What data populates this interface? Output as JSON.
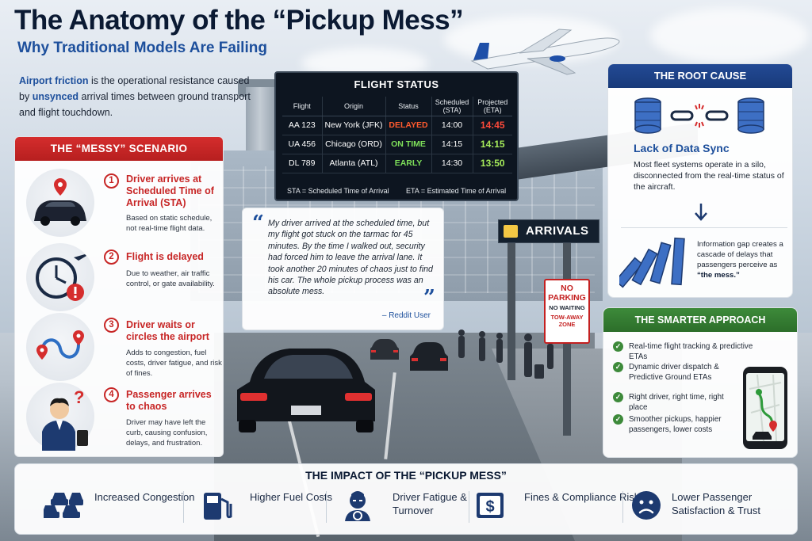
{
  "header": {
    "title": "The Anatomy of the “Pickup Mess”",
    "subtitle": "Why Traditional Models Are Failing",
    "intro_term": "Airport friction",
    "intro_part1": " is the operational resistance caused by ",
    "intro_bold": "unsynced",
    "intro_part2": " arrival times between ground transport and flight touchdown."
  },
  "messy": {
    "heading": "THE “MESSY” SCENARIO",
    "steps": [
      {
        "num": "1",
        "title": "Driver arrives at Scheduled Time of Arrival (STA)",
        "desc": "Based on static schedule, not real-time flight data.",
        "icon": "car-location-icon"
      },
      {
        "num": "2",
        "title": "Flight is delayed",
        "desc": "Due to weather, air traffic control, or gate availability.",
        "icon": "clock-delay-icon"
      },
      {
        "num": "3",
        "title": "Driver waits or circles the airport",
        "desc": "Adds to congestion, fuel costs, driver fatigue, and risk of fines.",
        "icon": "route-loop-icon"
      },
      {
        "num": "4",
        "title": "Passenger arrives to chaos",
        "desc": "Driver may have left the curb, causing confusion, delays, and frustration.",
        "icon": "confused-passenger-icon"
      }
    ]
  },
  "board": {
    "title": "FLIGHT STATUS",
    "headers": [
      "Flight",
      "Origin",
      "Status",
      "Scheduled (STA)",
      "Projected (ETA)"
    ],
    "rows": [
      {
        "flight": "AA 123",
        "origin": "New York (JFK)",
        "status": "DELAYED",
        "sta": "14:00",
        "eta": "14:45",
        "color": "#ff5a2e"
      },
      {
        "flight": "UA 456",
        "origin": "Chicago (ORD)",
        "status": "ON TIME",
        "sta": "14:15",
        "eta": "14:15",
        "color": "#7ee05a"
      },
      {
        "flight": "DL 789",
        "origin": "Atlanta (ATL)",
        "status": "EARLY",
        "sta": "14:30",
        "eta": "13:50",
        "color": "#7ee05a"
      }
    ],
    "legend_sta": "STA = Scheduled Time of Arrival",
    "legend_eta": "ETA = Estimated Time of Arrival"
  },
  "quote": {
    "open": "“",
    "close": "”",
    "text": "My driver arrived at the scheduled time, but my flight got stuck on the tarmac for 45 minutes. By the time I walked out, security had forced him to leave the arrival lane. It took another 20 minutes of chaos just to find his car. The whole pickup process was an absolute mess.",
    "author": "– Reddit User"
  },
  "signs": {
    "arrivals": "ARRIVALS",
    "no_parking_1": "NO",
    "no_parking_2": "PARKING",
    "no_waiting": "NO WAITING",
    "tow_1": "TOW-AWAY",
    "tow_2": "ZONE"
  },
  "root": {
    "heading": "THE ROOT CAUSE",
    "subtitle": "Lack of Data Sync",
    "desc": "Most fleet systems operate in a silo, disconnected from the real-time status of the aircraft.",
    "gap_text": "Information gap creates a cascade of delays that passengers perceive as ",
    "gap_bold": "“the mess.”"
  },
  "smart": {
    "heading": "THE SMARTER APPROACH",
    "items": [
      "Real-time flight tracking & predictive ETAs",
      "Dynamic driver dispatch & Predictive Ground ETAs",
      "Right driver, right time, right place",
      "Smoother pickups, happier passengers, lower costs"
    ]
  },
  "impact": {
    "title": "THE IMPACT OF THE “PICKUP MESS”",
    "items": [
      {
        "label": "Increased Congestion",
        "icon": "traffic-cars-icon"
      },
      {
        "label": "Higher Fuel Costs",
        "icon": "fuel-pump-icon"
      },
      {
        "label": "Driver Fatigue & Turnover",
        "icon": "tired-driver-icon"
      },
      {
        "label": "Fines & Compliance Risks",
        "icon": "fine-ticket-icon"
      },
      {
        "label": "Lower Passenger Satisfaction & Trust",
        "icon": "sad-face-icon"
      }
    ]
  },
  "colors": {
    "navy": "#0b1a33",
    "blue": "#1d4f9c",
    "red": "#c72626",
    "green": "#3d8a3a"
  }
}
